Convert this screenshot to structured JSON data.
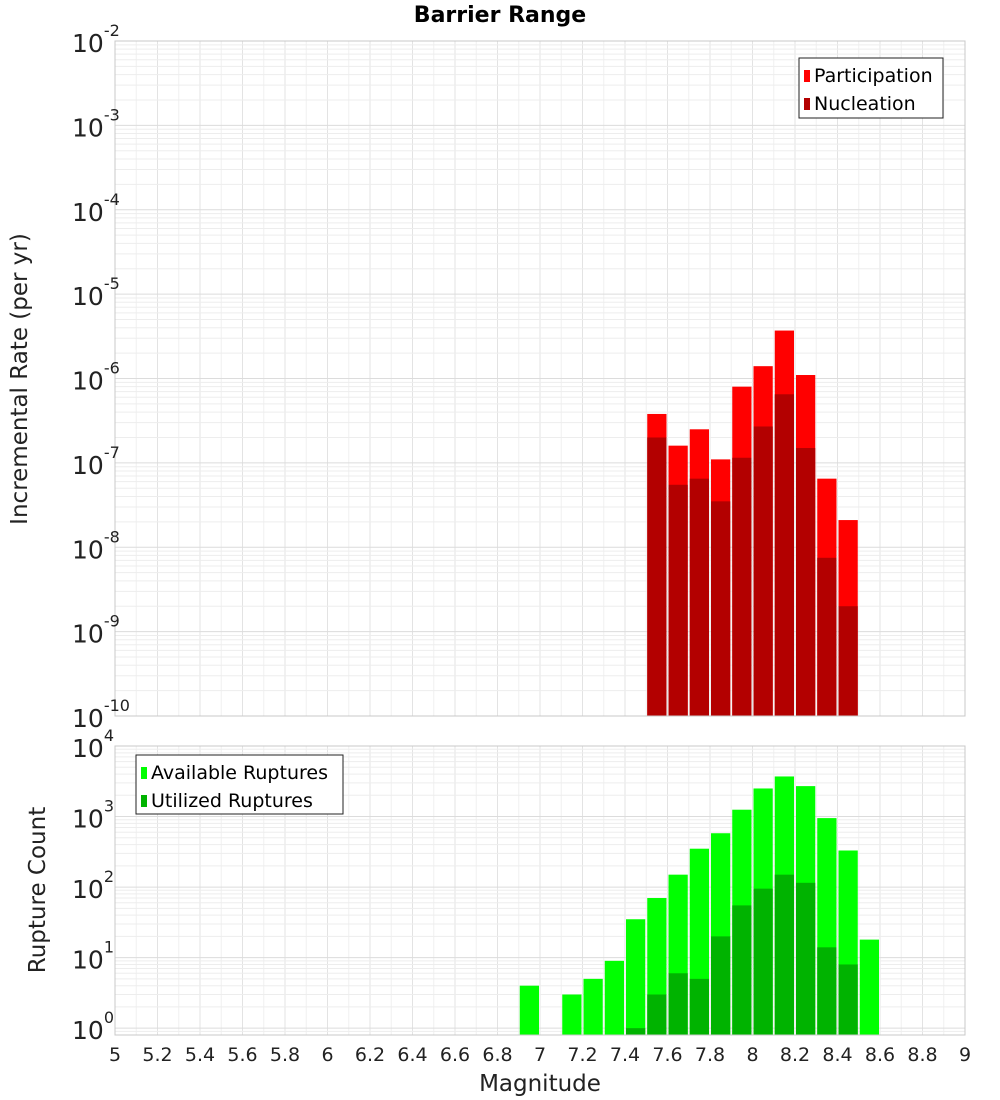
{
  "chart_data": [
    {
      "type": "bar",
      "title": "Barrier Range",
      "xlabel": "",
      "ylabel": "Incremental Rate (per yr)",
      "yscale": "log",
      "ylim": [
        1e-10,
        0.01
      ],
      "xlim": [
        5,
        9
      ],
      "grid": true,
      "legend_position": "top-right",
      "ytick_labels": [
        {
          "base": "10",
          "exp": "-10"
        },
        {
          "base": "10",
          "exp": "-9"
        },
        {
          "base": "10",
          "exp": "-8"
        },
        {
          "base": "10",
          "exp": "-7"
        },
        {
          "base": "10",
          "exp": "-6"
        },
        {
          "base": "10",
          "exp": "-5"
        },
        {
          "base": "10",
          "exp": "-4"
        },
        {
          "base": "10",
          "exp": "-3"
        },
        {
          "base": "10",
          "exp": "-2"
        }
      ],
      "x": [
        7.55,
        7.65,
        7.75,
        7.85,
        7.95,
        8.05,
        8.15,
        8.25,
        8.35,
        8.45
      ],
      "series": [
        {
          "name": "Participation",
          "color": "#ff0000",
          "values": [
            3.8e-07,
            1.6e-07,
            2.5e-07,
            1.1e-07,
            8e-07,
            1.4e-06,
            3.7e-06,
            1.1e-06,
            6.5e-08,
            2.1e-08
          ]
        },
        {
          "name": "Nucleation",
          "color": "#b30000",
          "values": [
            2e-07,
            5.5e-08,
            6.5e-08,
            3.5e-08,
            1.15e-07,
            2.7e-07,
            6.5e-07,
            1.5e-07,
            7.5e-09,
            2e-09
          ]
        }
      ]
    },
    {
      "type": "bar",
      "title": "",
      "xlabel": "Magnitude",
      "ylabel": "Rupture Count",
      "yscale": "log",
      "ylim": [
        0.8,
        10000
      ],
      "xlim": [
        5,
        9
      ],
      "grid": true,
      "legend_position": "top-left",
      "ytick_labels": [
        {
          "base": "10",
          "exp": "0"
        },
        {
          "base": "10",
          "exp": "1"
        },
        {
          "base": "10",
          "exp": "2"
        },
        {
          "base": "10",
          "exp": "3"
        },
        {
          "base": "10",
          "exp": "4"
        }
      ],
      "xtick_labels": [
        "5",
        "5.2",
        "5.4",
        "5.6",
        "5.8",
        "6",
        "6.2",
        "6.4",
        "6.6",
        "6.8",
        "7",
        "7.2",
        "7.4",
        "7.6",
        "7.8",
        "8",
        "8.2",
        "8.4",
        "8.6",
        "8.8",
        "9"
      ],
      "x": [
        6.95,
        7.15,
        7.25,
        7.35,
        7.45,
        7.55,
        7.65,
        7.75,
        7.85,
        7.95,
        8.05,
        8.15,
        8.25,
        8.35,
        8.45,
        8.55
      ],
      "series": [
        {
          "name": "Available Ruptures",
          "color": "#00ff00",
          "values": [
            4,
            3,
            5,
            9,
            35,
            70,
            150,
            350,
            580,
            1250,
            2500,
            3700,
            2700,
            950,
            330,
            18
          ]
        },
        {
          "name": "Utilized Ruptures",
          "color": "#00b300",
          "values": [
            null,
            null,
            null,
            null,
            1,
            3,
            6,
            5,
            20,
            55,
            95,
            150,
            115,
            14,
            8,
            null
          ]
        }
      ]
    }
  ]
}
